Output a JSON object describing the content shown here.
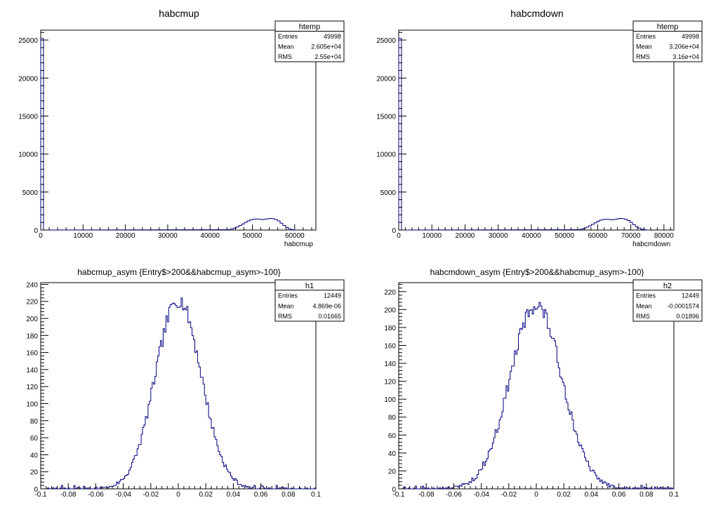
{
  "chart_data": [
    {
      "type": "bar",
      "title": "habcmup",
      "xlabel": "habcmup",
      "ylabel": "",
      "xlim": [
        0,
        65000
      ],
      "ylim": [
        0,
        26300
      ],
      "x_ticks": [
        "0",
        "10000",
        "20000",
        "30000",
        "40000",
        "50000",
        "60000"
      ],
      "y_ticks": [
        "0",
        "5000",
        "10000",
        "15000",
        "20000",
        "25000"
      ],
      "stats": {
        "name": "htemp",
        "rows": [
          [
            "Entries",
            "49998"
          ],
          [
            "Mean",
            "2.605e+04"
          ],
          [
            "RMS",
            "2.55e+04"
          ]
        ]
      },
      "bin_width": 650,
      "bins": [
        {
          "x": 0,
          "y": 25200
        },
        {
          "x": 650,
          "y": 0
        },
        {
          "x": 44200,
          "y": 50
        },
        {
          "x": 44850,
          "y": 150
        },
        {
          "x": 45500,
          "y": 250
        },
        {
          "x": 46150,
          "y": 400
        },
        {
          "x": 46800,
          "y": 600
        },
        {
          "x": 47450,
          "y": 800
        },
        {
          "x": 48100,
          "y": 1000
        },
        {
          "x": 48750,
          "y": 1200
        },
        {
          "x": 49400,
          "y": 1350
        },
        {
          "x": 50050,
          "y": 1420
        },
        {
          "x": 50700,
          "y": 1450
        },
        {
          "x": 51350,
          "y": 1430
        },
        {
          "x": 52000,
          "y": 1380
        },
        {
          "x": 52650,
          "y": 1420
        },
        {
          "x": 53300,
          "y": 1480
        },
        {
          "x": 53950,
          "y": 1520
        },
        {
          "x": 54600,
          "y": 1490
        },
        {
          "x": 55250,
          "y": 1400
        },
        {
          "x": 55900,
          "y": 1200
        },
        {
          "x": 56550,
          "y": 900
        },
        {
          "x": 57200,
          "y": 600
        },
        {
          "x": 57850,
          "y": 350
        },
        {
          "x": 58500,
          "y": 150
        },
        {
          "x": 59150,
          "y": 50
        },
        {
          "x": 59800,
          "y": 0
        }
      ]
    },
    {
      "type": "bar",
      "title": "habcmdown",
      "xlabel": "habcmdown",
      "ylabel": "",
      "xlim": [
        0,
        83000
      ],
      "ylim": [
        0,
        26300
      ],
      "x_ticks": [
        "0",
        "10000",
        "20000",
        "30000",
        "40000",
        "50000",
        "60000",
        "70000",
        "80000"
      ],
      "y_ticks": [
        "0",
        "5000",
        "10000",
        "15000",
        "20000",
        "25000"
      ],
      "stats": {
        "name": "htemp",
        "rows": [
          [
            "Entries",
            "49998"
          ],
          [
            "Mean",
            "3.206e+04"
          ],
          [
            "RMS",
            "3.16e+04"
          ]
        ]
      },
      "bin_width": 830,
      "bins": [
        {
          "x": 0,
          "y": 25200
        },
        {
          "x": 830,
          "y": 0
        },
        {
          "x": 53950,
          "y": 50
        },
        {
          "x": 54780,
          "y": 120
        },
        {
          "x": 55610,
          "y": 220
        },
        {
          "x": 56440,
          "y": 380
        },
        {
          "x": 57270,
          "y": 550
        },
        {
          "x": 58100,
          "y": 750
        },
        {
          "x": 58930,
          "y": 950
        },
        {
          "x": 59760,
          "y": 1150
        },
        {
          "x": 60590,
          "y": 1300
        },
        {
          "x": 61420,
          "y": 1380
        },
        {
          "x": 62250,
          "y": 1420
        },
        {
          "x": 63080,
          "y": 1400
        },
        {
          "x": 63910,
          "y": 1350
        },
        {
          "x": 64740,
          "y": 1400
        },
        {
          "x": 65570,
          "y": 1470
        },
        {
          "x": 66400,
          "y": 1520
        },
        {
          "x": 67230,
          "y": 1500
        },
        {
          "x": 68060,
          "y": 1420
        },
        {
          "x": 68890,
          "y": 1250
        },
        {
          "x": 69720,
          "y": 1000
        },
        {
          "x": 70550,
          "y": 700
        },
        {
          "x": 71380,
          "y": 450
        },
        {
          "x": 72210,
          "y": 250
        },
        {
          "x": 73040,
          "y": 100
        },
        {
          "x": 73870,
          "y": 30
        },
        {
          "x": 74700,
          "y": 0
        }
      ]
    },
    {
      "type": "bar",
      "title": "habcmup_asym {Entry$>200&&habcmup_asym>-100}",
      "xlabel": "",
      "ylabel": "",
      "xlim": [
        -0.1,
        0.1
      ],
      "ylim": [
        0,
        242
      ],
      "x_ticks": [
        "-0.1",
        "-0.08",
        "-0.06",
        "-0.04",
        "-0.02",
        "0",
        "0.02",
        "0.04",
        "0.06",
        "0.08",
        "0.1"
      ],
      "y_ticks": [
        "0",
        "20",
        "40",
        "60",
        "80",
        "100",
        "120",
        "140",
        "160",
        "180",
        "200",
        "220",
        "240"
      ],
      "stats": {
        "name": "h1",
        "rows": [
          [
            "Entries",
            "12449"
          ],
          [
            "Mean",
            "4.869e-06"
          ],
          [
            "RMS",
            "0.01665"
          ]
        ]
      },
      "gauss": {
        "mean": 0.0,
        "sigma": 0.0166,
        "peak": 222,
        "bins": 200,
        "noise": 9,
        "seed": 7,
        "xmin": -0.1,
        "xmax": 0.1
      }
    },
    {
      "type": "bar",
      "title": "habcmdown_asym {Entry$>200&&habcmup_asym>-100}",
      "xlabel": "",
      "ylabel": "",
      "xlim": [
        -0.1,
        0.1
      ],
      "ylim": [
        0,
        230
      ],
      "x_ticks": [
        "-0.1",
        "-0.08",
        "-0.06",
        "-0.04",
        "-0.02",
        "0",
        "0.02",
        "0.04",
        "0.06",
        "0.08",
        "0.1"
      ],
      "y_ticks": [
        "0",
        "20",
        "40",
        "60",
        "80",
        "100",
        "120",
        "140",
        "160",
        "180",
        "200",
        "220"
      ],
      "stats": {
        "name": "h2",
        "rows": [
          [
            "Entries",
            "12449"
          ],
          [
            "Mean",
            "-0.0001574"
          ],
          [
            "RMS",
            "0.01896"
          ]
        ]
      },
      "gauss": {
        "mean": -0.0002,
        "sigma": 0.0189,
        "peak": 205,
        "bins": 200,
        "noise": 9,
        "seed": 13,
        "xmin": -0.1,
        "xmax": 0.1
      }
    }
  ],
  "colors": {
    "line_up": "#000080",
    "line_down": "#000080",
    "frame": "#000000"
  }
}
